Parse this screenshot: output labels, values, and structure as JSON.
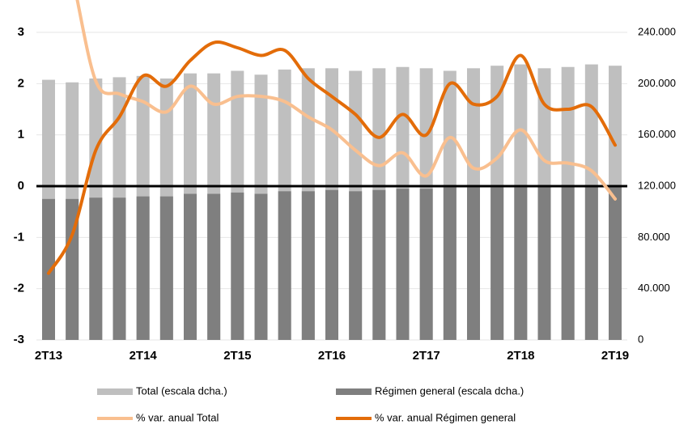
{
  "chart_data": {
    "type": "bar-line",
    "categories": [
      "2T13",
      null,
      null,
      null,
      "2T14",
      null,
      null,
      null,
      "2T15",
      null,
      null,
      null,
      "2T16",
      null,
      null,
      null,
      "2T17",
      null,
      null,
      null,
      "2T18",
      null,
      null,
      null,
      "2T19"
    ],
    "series": [
      {
        "name": "Total (escala dcha.)",
        "type": "bar",
        "axis": "y2",
        "color": "#bfbfbf",
        "values": [
          203000,
          201000,
          204000,
          205000,
          206000,
          204000,
          208000,
          208000,
          210000,
          207000,
          211000,
          212000,
          212000,
          210000,
          212000,
          213000,
          212000,
          210000,
          212000,
          214000,
          215000,
          212000,
          213000,
          215000,
          214000
        ]
      },
      {
        "name": "Régimen general (escala dcha.)",
        "type": "bar",
        "axis": "y2",
        "color": "#7f7f7f",
        "values": [
          110000,
          110000,
          111000,
          111000,
          112000,
          112000,
          114000,
          114000,
          115000,
          114000,
          116000,
          116000,
          117000,
          116000,
          117000,
          118000,
          118000,
          119000,
          119000,
          119000,
          119000,
          120000,
          120000,
          120000,
          120000
        ]
      },
      {
        "name": "% var. anual Total",
        "type": "line",
        "color": "#f9bf8f",
        "values": [
          6,
          4.1,
          2.05,
          1.8,
          1.65,
          1.45,
          1.95,
          1.6,
          1.75,
          1.75,
          1.65,
          1.35,
          1.1,
          0.7,
          0.4,
          0.65,
          0.2,
          0.95,
          0.35,
          0.55,
          1.1,
          0.5,
          0.45,
          0.3,
          -0.25
        ]
      },
      {
        "name": "% var. anual Régimen general",
        "type": "line",
        "color": "#e36c09",
        "values": [
          -1.7,
          -0.95,
          0.7,
          1.35,
          2.15,
          1.95,
          2.45,
          2.8,
          2.7,
          2.55,
          2.65,
          2.1,
          1.75,
          1.4,
          0.95,
          1.4,
          1.0,
          2.0,
          1.6,
          1.75,
          2.55,
          1.6,
          1.5,
          1.55,
          0.8
        ]
      }
    ],
    "ylim": [
      -3,
      3
    ],
    "yticks": [
      -3,
      -2,
      -1,
      0,
      1,
      2,
      3
    ],
    "y2lim": [
      0,
      240000
    ],
    "y2ticks": [
      0,
      {
        "value": 40000,
        "label": "40.000"
      },
      {
        "value": 80000,
        "label": "80.000"
      },
      {
        "value": 120000,
        "label": "120.000"
      },
      {
        "value": 160000,
        "label": "160.000"
      },
      {
        "value": 200000,
        "label": "200.000"
      },
      {
        "value": 240000,
        "label": "240.000"
      }
    ],
    "grid": true,
    "legend": "bottom"
  }
}
